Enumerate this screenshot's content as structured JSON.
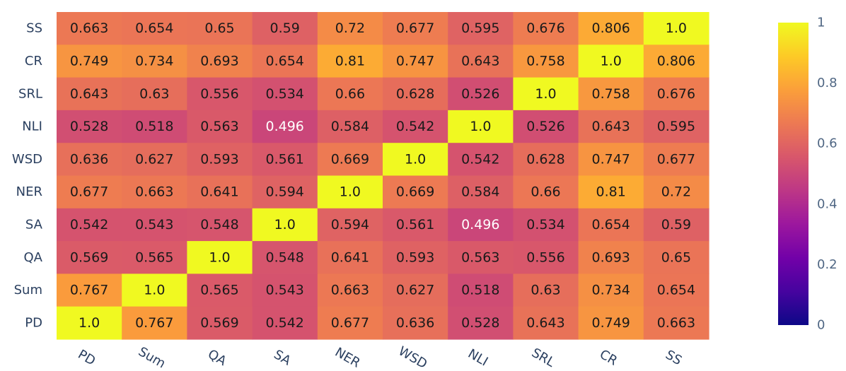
{
  "chart_data": {
    "type": "heatmap",
    "x_labels": [
      "PD",
      "Sum",
      "QA",
      "SA",
      "NER",
      "WSD",
      "NLI",
      "SRL",
      "CR",
      "SS"
    ],
    "y_labels_top_to_bottom": [
      "SS",
      "CR",
      "SRL",
      "NLI",
      "WSD",
      "NER",
      "SA",
      "QA",
      "Sum",
      "PD"
    ],
    "z_text_top_to_bottom": [
      [
        "0.663",
        "0.654",
        "0.65",
        "0.59",
        "0.72",
        "0.677",
        "0.595",
        "0.676",
        "0.806",
        "1.0"
      ],
      [
        "0.749",
        "0.734",
        "0.693",
        "0.654",
        "0.81",
        "0.747",
        "0.643",
        "0.758",
        "1.0",
        "0.806"
      ],
      [
        "0.643",
        "0.63",
        "0.556",
        "0.534",
        "0.66",
        "0.628",
        "0.526",
        "1.0",
        "0.758",
        "0.676"
      ],
      [
        "0.528",
        "0.518",
        "0.563",
        "0.496",
        "0.584",
        "0.542",
        "1.0",
        "0.526",
        "0.643",
        "0.595"
      ],
      [
        "0.636",
        "0.627",
        "0.593",
        "0.561",
        "0.669",
        "1.0",
        "0.542",
        "0.628",
        "0.747",
        "0.677"
      ],
      [
        "0.677",
        "0.663",
        "0.641",
        "0.594",
        "1.0",
        "0.669",
        "0.584",
        "0.66",
        "0.81",
        "0.72"
      ],
      [
        "0.542",
        "0.543",
        "0.548",
        "1.0",
        "0.594",
        "0.561",
        "0.496",
        "0.534",
        "0.654",
        "0.59"
      ],
      [
        "0.569",
        "0.565",
        "1.0",
        "0.548",
        "0.641",
        "0.593",
        "0.563",
        "0.556",
        "0.693",
        "0.65"
      ],
      [
        "0.767",
        "1.0",
        "0.565",
        "0.543",
        "0.663",
        "0.627",
        "0.518",
        "0.63",
        "0.734",
        "0.654"
      ],
      [
        "1.0",
        "0.767",
        "0.569",
        "0.542",
        "0.677",
        "0.636",
        "0.528",
        "0.643",
        "0.749",
        "0.663"
      ]
    ],
    "colorscale": "Plasma",
    "zmin": 0,
    "zmax": 1,
    "colorbar_ticks": [
      "0",
      "0.2",
      "0.4",
      "0.6",
      "0.8",
      "1"
    ]
  }
}
